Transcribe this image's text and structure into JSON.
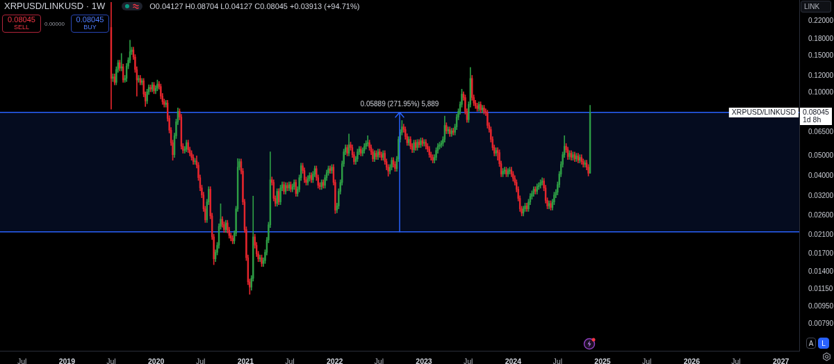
{
  "chart_data": {
    "type": "candlestick",
    "title": "XRPUSD/LINKUSD · 1W",
    "subtitle": "O0.04127 H0.08704 L0.04127 C0.08045 +0.03913 (+94.71%)",
    "ylabel": "LINK",
    "annotations": [
      "0.08045",
      "SELL",
      "0.00000",
      "0.08045",
      "BUY",
      "0.08045",
      "1d 8h",
      "A",
      "L",
      {
        "text": "XRPUSD/LINKUSD",
        "y": 0.08045
      }
    ],
    "x": [
      "2019-07-01",
      "2019-07-08",
      "2019-07-15",
      "2019-07-22",
      "2019-07-29",
      "2019-08-05",
      "2019-08-12",
      "2019-08-19",
      "2019-08-26",
      "2019-09-02",
      "2019-09-09",
      "2019-09-16",
      "2019-09-23",
      "2019-09-30",
      "2019-10-07",
      "2019-10-14",
      "2019-10-21",
      "2019-10-28",
      "2019-11-04",
      "2019-11-11",
      "2019-11-18",
      "2019-11-25",
      "2019-12-02",
      "2019-12-09",
      "2019-12-16",
      "2019-12-23",
      "2019-12-30",
      "2020-01-06",
      "2020-01-13",
      "2020-01-20",
      "2020-01-27",
      "2020-02-03",
      "2020-02-10",
      "2020-02-17",
      "2020-02-24",
      "2020-03-02",
      "2020-03-09",
      "2020-03-16",
      "2020-03-23",
      "2020-03-30",
      "2020-04-06",
      "2020-04-13",
      "2020-04-20",
      "2020-04-27",
      "2020-05-04",
      "2020-05-11",
      "2020-05-18",
      "2020-05-25",
      "2020-06-01",
      "2020-06-08",
      "2020-06-15",
      "2020-06-22",
      "2020-06-29",
      "2020-07-06",
      "2020-07-13",
      "2020-07-20",
      "2020-07-27",
      "2020-08-03",
      "2020-08-10",
      "2020-08-17",
      "2020-08-24",
      "2020-08-31",
      "2020-09-07",
      "2020-09-14",
      "2020-09-21",
      "2020-09-28",
      "2020-10-05",
      "2020-10-12",
      "2020-10-19",
      "2020-10-26",
      "2020-11-02",
      "2020-11-09",
      "2020-11-16",
      "2020-11-23",
      "2020-11-30",
      "2020-12-07",
      "2020-12-14",
      "2020-12-21",
      "2020-12-28",
      "2021-01-04",
      "2021-01-11",
      "2021-01-18",
      "2021-01-25",
      "2021-02-01",
      "2021-02-08",
      "2021-02-15",
      "2021-02-22",
      "2021-03-01",
      "2021-03-08",
      "2021-03-15",
      "2021-03-22",
      "2021-03-29",
      "2021-04-05",
      "2021-04-12",
      "2021-04-19",
      "2021-04-26",
      "2021-05-03",
      "2021-05-10",
      "2021-05-17",
      "2021-05-24",
      "2021-05-31",
      "2021-06-07",
      "2021-06-14",
      "2021-06-21",
      "2021-06-28",
      "2021-07-05",
      "2021-07-12",
      "2021-07-19",
      "2021-07-26",
      "2021-08-02",
      "2021-08-09",
      "2021-08-16",
      "2021-08-23",
      "2021-08-30",
      "2021-09-06",
      "2021-09-13",
      "2021-09-20",
      "2021-09-27",
      "2021-10-04",
      "2021-10-11",
      "2021-10-18",
      "2021-10-25",
      "2021-11-01",
      "2021-11-08",
      "2021-11-15",
      "2021-11-22",
      "2021-11-29",
      "2021-12-06",
      "2021-12-13",
      "2021-12-20",
      "2021-12-27",
      "2022-01-03",
      "2022-01-10",
      "2022-01-17",
      "2022-01-24",
      "2022-01-31",
      "2022-02-07",
      "2022-02-14",
      "2022-02-21",
      "2022-02-28",
      "2022-03-07",
      "2022-03-14",
      "2022-03-21",
      "2022-03-28",
      "2022-04-04",
      "2022-04-11",
      "2022-04-18",
      "2022-04-25",
      "2022-05-02",
      "2022-05-09",
      "2022-05-16",
      "2022-05-23",
      "2022-05-30",
      "2022-06-06",
      "2022-06-13",
      "2022-06-20",
      "2022-06-27",
      "2022-07-04",
      "2022-07-11",
      "2022-07-18",
      "2022-07-25",
      "2022-08-01",
      "2022-08-08",
      "2022-08-15",
      "2022-08-22",
      "2022-08-29",
      "2022-09-05",
      "2022-09-12",
      "2022-09-19",
      "2022-09-26",
      "2022-10-03",
      "2022-10-10",
      "2022-10-17",
      "2022-10-24",
      "2022-10-31",
      "2022-11-07",
      "2022-11-14",
      "2022-11-21",
      "2022-11-28",
      "2022-12-05",
      "2022-12-12",
      "2022-12-19",
      "2022-12-26",
      "2023-01-02",
      "2023-01-09",
      "2023-01-16",
      "2023-01-23",
      "2023-01-30",
      "2023-02-06",
      "2023-02-13",
      "2023-02-20",
      "2023-02-27",
      "2023-03-06",
      "2023-03-13",
      "2023-03-20",
      "2023-03-27",
      "2023-04-03",
      "2023-04-10",
      "2023-04-17",
      "2023-04-24",
      "2023-05-01",
      "2023-05-08",
      "2023-05-15",
      "2023-05-22",
      "2023-05-29",
      "2023-06-05",
      "2023-06-12",
      "2023-06-19",
      "2023-06-26",
      "2023-07-03",
      "2023-07-10",
      "2023-07-17",
      "2023-07-24",
      "2023-07-31",
      "2023-08-07",
      "2023-08-14",
      "2023-08-21",
      "2023-08-28",
      "2023-09-04",
      "2023-09-11",
      "2023-09-18",
      "2023-09-25",
      "2023-10-02",
      "2023-10-09",
      "2023-10-16",
      "2023-10-23",
      "2023-10-30",
      "2023-11-06",
      "2023-11-13",
      "2023-11-20",
      "2023-11-27",
      "2023-12-04",
      "2023-12-11",
      "2023-12-18",
      "2023-12-25",
      "2024-01-01",
      "2024-01-08",
      "2024-01-15",
      "2024-01-22",
      "2024-01-29",
      "2024-02-05",
      "2024-02-12",
      "2024-02-19",
      "2024-02-26",
      "2024-03-04",
      "2024-03-11",
      "2024-03-18",
      "2024-03-25",
      "2024-04-01",
      "2024-04-08",
      "2024-04-15",
      "2024-04-22",
      "2024-04-29",
      "2024-05-06",
      "2024-05-13",
      "2024-05-20",
      "2024-05-27",
      "2024-06-03",
      "2024-06-10",
      "2024-06-17",
      "2024-06-24",
      "2024-07-01",
      "2024-07-08",
      "2024-07-15",
      "2024-07-22",
      "2024-07-29",
      "2024-08-05",
      "2024-08-12",
      "2024-08-19",
      "2024-08-26",
      "2024-09-02",
      "2024-09-09",
      "2024-09-16",
      "2024-09-23",
      "2024-09-30",
      "2024-10-07",
      "2024-10-14",
      "2024-10-21",
      "2024-10-28",
      "2024-11-04",
      "2024-11-11"
    ],
    "ohlc": [
      [
        0.205,
        0.27,
        0.0834,
        0.117
      ],
      [
        0.117,
        0.123,
        0.113,
        0.119
      ],
      [
        0.119,
        0.123,
        0.109,
        0.112
      ],
      [
        0.112,
        0.133,
        0.109,
        0.129
      ],
      [
        0.129,
        0.143,
        0.125,
        0.139
      ],
      [
        0.139,
        0.143,
        0.127,
        0.131
      ],
      [
        0.131,
        0.154,
        0.127,
        0.133
      ],
      [
        0.133,
        0.137,
        0.112,
        0.115
      ],
      [
        0.115,
        0.121,
        0.112,
        0.117
      ],
      [
        0.117,
        0.138,
        0.113,
        0.134
      ],
      [
        0.134,
        0.147,
        0.13,
        0.143
      ],
      [
        0.143,
        0.178,
        0.139,
        0.157
      ],
      [
        0.157,
        0.165,
        0.152,
        0.16
      ],
      [
        0.16,
        0.165,
        0.144,
        0.148
      ],
      [
        0.148,
        0.152,
        0.125,
        0.129
      ],
      [
        0.129,
        0.133,
        0.0963,
        0.115
      ],
      [
        0.115,
        0.121,
        0.112,
        0.117
      ],
      [
        0.117,
        0.121,
        0.109,
        0.112
      ],
      [
        0.112,
        0.117,
        0.109,
        0.114
      ],
      [
        0.114,
        0.117,
        0.0955,
        0.0985
      ],
      [
        0.0985,
        0.101,
        0.0859,
        0.0913
      ],
      [
        0.0913,
        0.104,
        0.0886,
        0.101
      ],
      [
        0.101,
        0.109,
        0.098,
        0.106
      ],
      [
        0.106,
        0.109,
        0.101,
        0.104
      ],
      [
        0.104,
        0.112,
        0.101,
        0.109
      ],
      [
        0.109,
        0.112,
        0.0989,
        0.102
      ],
      [
        0.102,
        0.108,
        0.0989,
        0.105
      ],
      [
        0.105,
        0.115,
        0.102,
        0.11
      ],
      [
        0.11,
        0.113,
        0.104,
        0.107
      ],
      [
        0.107,
        0.11,
        0.0934,
        0.0963
      ],
      [
        0.0963,
        0.0992,
        0.0879,
        0.0906
      ],
      [
        0.0906,
        0.0933,
        0.0853,
        0.0879
      ],
      [
        0.0879,
        0.092,
        0.0853,
        0.0893
      ],
      [
        0.0893,
        0.092,
        0.0731,
        0.0754
      ],
      [
        0.0754,
        0.0777,
        0.0642,
        0.0662
      ],
      [
        0.0662,
        0.0682,
        0.056,
        0.0577
      ],
      [
        0.0577,
        0.0594,
        0.0476,
        0.0506
      ],
      [
        0.0506,
        0.0642,
        0.0491,
        0.0623
      ],
      [
        0.0623,
        0.0748,
        0.0604,
        0.0726
      ],
      [
        0.0726,
        0.0846,
        0.0704,
        0.0814
      ],
      [
        0.0814,
        0.0838,
        0.0742,
        0.0765
      ],
      [
        0.0765,
        0.0788,
        0.0538,
        0.0555
      ],
      [
        0.0555,
        0.0572,
        0.0514,
        0.053
      ],
      [
        0.053,
        0.0554,
        0.0514,
        0.0538
      ],
      [
        0.0538,
        0.0594,
        0.0522,
        0.0577
      ],
      [
        0.0577,
        0.0594,
        0.0518,
        0.0534
      ],
      [
        0.0534,
        0.055,
        0.0499,
        0.0514
      ],
      [
        0.0514,
        0.0529,
        0.0476,
        0.0491
      ],
      [
        0.0491,
        0.0506,
        0.0455,
        0.0469
      ],
      [
        0.0469,
        0.0486,
        0.0455,
        0.0472
      ],
      [
        0.0472,
        0.05,
        0.0437,
        0.0451
      ],
      [
        0.0451,
        0.0465,
        0.0381,
        0.0393
      ],
      [
        0.0393,
        0.0405,
        0.034,
        0.0351
      ],
      [
        0.0351,
        0.0362,
        0.0315,
        0.0325
      ],
      [
        0.0325,
        0.0335,
        0.0271,
        0.0279
      ],
      [
        0.0279,
        0.0287,
        0.024,
        0.0247
      ],
      [
        0.0247,
        0.031,
        0.024,
        0.0301
      ],
      [
        0.0301,
        0.0356,
        0.0292,
        0.0346
      ],
      [
        0.0346,
        0.0356,
        0.025,
        0.0258
      ],
      [
        0.0258,
        0.0266,
        0.0199,
        0.0205
      ],
      [
        0.0205,
        0.0211,
        0.0151,
        0.0161
      ],
      [
        0.0161,
        0.0178,
        0.0156,
        0.0173
      ],
      [
        0.0173,
        0.0193,
        0.0168,
        0.0187
      ],
      [
        0.0187,
        0.0237,
        0.0181,
        0.023
      ],
      [
        0.023,
        0.0295,
        0.0223,
        0.0249
      ],
      [
        0.0249,
        0.0256,
        0.0228,
        0.0235
      ],
      [
        0.0235,
        0.0242,
        0.0215,
        0.0222
      ],
      [
        0.0222,
        0.0246,
        0.0215,
        0.0239
      ],
      [
        0.0239,
        0.0246,
        0.0214,
        0.0221
      ],
      [
        0.0221,
        0.0228,
        0.0202,
        0.0208
      ],
      [
        0.0208,
        0.0214,
        0.0196,
        0.0202
      ],
      [
        0.0202,
        0.0208,
        0.019,
        0.0196
      ],
      [
        0.0196,
        0.0219,
        0.019,
        0.0213
      ],
      [
        0.0213,
        0.0287,
        0.0207,
        0.0279
      ],
      [
        0.0279,
        0.0485,
        0.0271,
        0.0441
      ],
      [
        0.0441,
        0.0483,
        0.0428,
        0.0469
      ],
      [
        0.0469,
        0.0483,
        0.0409,
        0.0422
      ],
      [
        0.0422,
        0.0435,
        0.0292,
        0.0301
      ],
      [
        0.0301,
        0.031,
        0.0215,
        0.0222
      ],
      [
        0.0222,
        0.0229,
        0.0158,
        0.0163
      ],
      [
        0.0163,
        0.0168,
        0.0121,
        0.0125
      ],
      [
        0.0125,
        0.0129,
        0.0109,
        0.0118
      ],
      [
        0.0118,
        0.0134,
        0.0114,
        0.013
      ],
      [
        0.013,
        0.0321,
        0.0126,
        0.0205
      ],
      [
        0.0205,
        0.0211,
        0.0181,
        0.0187
      ],
      [
        0.0187,
        0.0193,
        0.0165,
        0.017
      ],
      [
        0.017,
        0.0175,
        0.0156,
        0.0161
      ],
      [
        0.0161,
        0.0168,
        0.0156,
        0.0163
      ],
      [
        0.0163,
        0.0168,
        0.0148,
        0.0153
      ],
      [
        0.0153,
        0.0163,
        0.0148,
        0.0158
      ],
      [
        0.0158,
        0.0178,
        0.0153,
        0.0173
      ],
      [
        0.0173,
        0.0204,
        0.0168,
        0.0198
      ],
      [
        0.0198,
        0.0241,
        0.0192,
        0.0234
      ],
      [
        0.0234,
        0.0522,
        0.0227,
        0.0384
      ],
      [
        0.0384,
        0.0396,
        0.0362,
        0.0373
      ],
      [
        0.0373,
        0.0384,
        0.0304,
        0.0313
      ],
      [
        0.0313,
        0.0322,
        0.0287,
        0.0296
      ],
      [
        0.0296,
        0.0348,
        0.0287,
        0.0338
      ],
      [
        0.0338,
        0.0348,
        0.0292,
        0.0301
      ],
      [
        0.0301,
        0.0362,
        0.0292,
        0.0351
      ],
      [
        0.0351,
        0.0375,
        0.034,
        0.0364
      ],
      [
        0.0364,
        0.0375,
        0.0328,
        0.0338
      ],
      [
        0.0338,
        0.0372,
        0.0328,
        0.0361
      ],
      [
        0.0361,
        0.0372,
        0.034,
        0.0351
      ],
      [
        0.0351,
        0.0375,
        0.034,
        0.0364
      ],
      [
        0.0364,
        0.0375,
        0.0336,
        0.0346
      ],
      [
        0.0346,
        0.0367,
        0.0336,
        0.0356
      ],
      [
        0.0356,
        0.0384,
        0.0345,
        0.0373
      ],
      [
        0.0373,
        0.0384,
        0.032,
        0.033
      ],
      [
        0.033,
        0.0356,
        0.032,
        0.0346
      ],
      [
        0.0346,
        0.0405,
        0.0336,
        0.0393
      ],
      [
        0.0393,
        0.0461,
        0.0381,
        0.0448
      ],
      [
        0.0448,
        0.0461,
        0.0412,
        0.0425
      ],
      [
        0.0425,
        0.0438,
        0.0372,
        0.0384
      ],
      [
        0.0384,
        0.0396,
        0.0362,
        0.0373
      ],
      [
        0.0373,
        0.0402,
        0.0362,
        0.039
      ],
      [
        0.039,
        0.0415,
        0.0378,
        0.0403
      ],
      [
        0.0403,
        0.0415,
        0.0372,
        0.0384
      ],
      [
        0.0384,
        0.0421,
        0.0372,
        0.0409
      ],
      [
        0.0409,
        0.0447,
        0.0397,
        0.0434
      ],
      [
        0.0434,
        0.0447,
        0.0381,
        0.0393
      ],
      [
        0.0393,
        0.0405,
        0.035,
        0.0361
      ],
      [
        0.0361,
        0.0372,
        0.0345,
        0.0356
      ],
      [
        0.0356,
        0.0384,
        0.0345,
        0.0373
      ],
      [
        0.0373,
        0.0384,
        0.035,
        0.0361
      ],
      [
        0.0361,
        0.0405,
        0.035,
        0.0393
      ],
      [
        0.0393,
        0.0427,
        0.0381,
        0.0415
      ],
      [
        0.0415,
        0.0447,
        0.0403,
        0.0434
      ],
      [
        0.0434,
        0.0447,
        0.0412,
        0.0425
      ],
      [
        0.0425,
        0.0454,
        0.0412,
        0.0441
      ],
      [
        0.0441,
        0.0454,
        0.0362,
        0.0373
      ],
      [
        0.0373,
        0.0384,
        0.0265,
        0.0275
      ],
      [
        0.0275,
        0.0297,
        0.0267,
        0.0288
      ],
      [
        0.0288,
        0.0348,
        0.0279,
        0.0338
      ],
      [
        0.0338,
        0.0384,
        0.0328,
        0.0373
      ],
      [
        0.0373,
        0.0472,
        0.0362,
        0.0458
      ],
      [
        0.0458,
        0.0538,
        0.0444,
        0.0522
      ],
      [
        0.0522,
        0.0563,
        0.0506,
        0.0547
      ],
      [
        0.0547,
        0.0563,
        0.0499,
        0.0514
      ],
      [
        0.0514,
        0.0636,
        0.0499,
        0.0564
      ],
      [
        0.0564,
        0.0581,
        0.0531,
        0.0547
      ],
      [
        0.0547,
        0.0563,
        0.0491,
        0.0506
      ],
      [
        0.0506,
        0.0521,
        0.0455,
        0.0469
      ],
      [
        0.0469,
        0.0497,
        0.0455,
        0.0483
      ],
      [
        0.0483,
        0.0538,
        0.0469,
        0.0522
      ],
      [
        0.0522,
        0.0554,
        0.0506,
        0.0538
      ],
      [
        0.0538,
        0.0554,
        0.0499,
        0.0514
      ],
      [
        0.0514,
        0.0546,
        0.0499,
        0.053
      ],
      [
        0.053,
        0.0572,
        0.0514,
        0.0555
      ],
      [
        0.0555,
        0.059,
        0.0538,
        0.0573
      ],
      [
        0.0573,
        0.0623,
        0.0556,
        0.0577
      ],
      [
        0.0577,
        0.0594,
        0.0531,
        0.0547
      ],
      [
        0.0547,
        0.0563,
        0.0506,
        0.0522
      ],
      [
        0.0522,
        0.0538,
        0.0469,
        0.0483
      ],
      [
        0.0483,
        0.0529,
        0.0469,
        0.0514
      ],
      [
        0.0514,
        0.0529,
        0.048,
        0.0495
      ],
      [
        0.0495,
        0.0538,
        0.048,
        0.0522
      ],
      [
        0.0522,
        0.0538,
        0.0491,
        0.0506
      ],
      [
        0.0506,
        0.0521,
        0.0476,
        0.0491
      ],
      [
        0.0491,
        0.0529,
        0.0476,
        0.0514
      ],
      [
        0.0514,
        0.0529,
        0.0455,
        0.0469
      ],
      [
        0.0469,
        0.0483,
        0.0428,
        0.0441
      ],
      [
        0.0441,
        0.0454,
        0.0399,
        0.0422
      ],
      [
        0.0422,
        0.0454,
        0.0409,
        0.0441
      ],
      [
        0.0441,
        0.049,
        0.0428,
        0.0476
      ],
      [
        0.0476,
        0.049,
        0.0441,
        0.0455
      ],
      [
        0.0455,
        0.0469,
        0.0421,
        0.0434
      ],
      [
        0.0434,
        0.0497,
        0.0421,
        0.0483
      ],
      [
        0.0483,
        0.0617,
        0.0469,
        0.0599
      ],
      [
        0.0599,
        0.0666,
        0.0581,
        0.0647
      ],
      [
        0.0647,
        0.0737,
        0.0628,
        0.0687
      ],
      [
        0.0687,
        0.0708,
        0.0647,
        0.0667
      ],
      [
        0.0667,
        0.0687,
        0.0599,
        0.0618
      ],
      [
        0.0618,
        0.0637,
        0.056,
        0.0577
      ],
      [
        0.0577,
        0.0617,
        0.056,
        0.0599
      ],
      [
        0.0599,
        0.0617,
        0.0538,
        0.0555
      ],
      [
        0.0555,
        0.0572,
        0.0518,
        0.0534
      ],
      [
        0.0534,
        0.0594,
        0.0518,
        0.0577
      ],
      [
        0.0577,
        0.0594,
        0.0531,
        0.0547
      ],
      [
        0.0547,
        0.0598,
        0.0531,
        0.0581
      ],
      [
        0.0581,
        0.0598,
        0.0547,
        0.0564
      ],
      [
        0.0564,
        0.0608,
        0.0547,
        0.059
      ],
      [
        0.059,
        0.0608,
        0.0556,
        0.0573
      ],
      [
        0.0573,
        0.0598,
        0.0556,
        0.0581
      ],
      [
        0.0581,
        0.0598,
        0.0538,
        0.0555
      ],
      [
        0.0555,
        0.0572,
        0.0522,
        0.0538
      ],
      [
        0.0538,
        0.0554,
        0.0491,
        0.0506
      ],
      [
        0.0506,
        0.0521,
        0.0476,
        0.0491
      ],
      [
        0.0491,
        0.0506,
        0.0462,
        0.0476
      ],
      [
        0.0476,
        0.0506,
        0.0462,
        0.0491
      ],
      [
        0.0491,
        0.0546,
        0.0476,
        0.053
      ],
      [
        0.053,
        0.0572,
        0.0514,
        0.0555
      ],
      [
        0.0555,
        0.0581,
        0.0538,
        0.0564
      ],
      [
        0.0564,
        0.059,
        0.0547,
        0.0573
      ],
      [
        0.0573,
        0.0617,
        0.0556,
        0.0599
      ],
      [
        0.0599,
        0.0774,
        0.0581,
        0.0698
      ],
      [
        0.0698,
        0.0719,
        0.0637,
        0.0657
      ],
      [
        0.0657,
        0.0687,
        0.0637,
        0.0667
      ],
      [
        0.0667,
        0.0687,
        0.0618,
        0.0637
      ],
      [
        0.0637,
        0.0677,
        0.0618,
        0.0657
      ],
      [
        0.0657,
        0.0677,
        0.0628,
        0.0647
      ],
      [
        0.0647,
        0.0708,
        0.0628,
        0.0687
      ],
      [
        0.0687,
        0.0788,
        0.0666,
        0.0765
      ],
      [
        0.0765,
        0.0838,
        0.0742,
        0.0814
      ],
      [
        0.0814,
        0.0905,
        0.079,
        0.0879
      ],
      [
        0.0879,
        0.104,
        0.0853,
        0.0985
      ],
      [
        0.0985,
        0.101,
        0.092,
        0.0948
      ],
      [
        0.0948,
        0.0976,
        0.079,
        0.0814
      ],
      [
        0.0814,
        0.0838,
        0.0721,
        0.0743
      ],
      [
        0.0743,
        0.0905,
        0.0721,
        0.0879
      ],
      [
        0.0879,
        0.132,
        0.0853,
        0.117
      ],
      [
        0.117,
        0.121,
        0.092,
        0.0948
      ],
      [
        0.0948,
        0.0976,
        0.0866,
        0.0893
      ],
      [
        0.0893,
        0.092,
        0.084,
        0.0866
      ],
      [
        0.0866,
        0.0892,
        0.0815,
        0.084
      ],
      [
        0.084,
        0.0905,
        0.0815,
        0.0879
      ],
      [
        0.0879,
        0.0905,
        0.0802,
        0.0827
      ],
      [
        0.0827,
        0.0871,
        0.0802,
        0.0846
      ],
      [
        0.0846,
        0.0871,
        0.079,
        0.0814
      ],
      [
        0.0814,
        0.0838,
        0.0778,
        0.0802
      ],
      [
        0.0802,
        0.0826,
        0.0677,
        0.0698
      ],
      [
        0.0698,
        0.0719,
        0.0647,
        0.0667
      ],
      [
        0.0667,
        0.0687,
        0.0581,
        0.0599
      ],
      [
        0.0599,
        0.0617,
        0.0531,
        0.0547
      ],
      [
        0.0547,
        0.0563,
        0.0499,
        0.0514
      ],
      [
        0.0514,
        0.0546,
        0.0499,
        0.053
      ],
      [
        0.053,
        0.0546,
        0.0476,
        0.0518
      ],
      [
        0.0518,
        0.0534,
        0.0444,
        0.0458
      ],
      [
        0.0458,
        0.0472,
        0.0397,
        0.0409
      ],
      [
        0.0409,
        0.0435,
        0.0397,
        0.0422
      ],
      [
        0.0422,
        0.0441,
        0.0409,
        0.0428
      ],
      [
        0.0428,
        0.0441,
        0.0397,
        0.0409
      ],
      [
        0.0409,
        0.0435,
        0.0397,
        0.0422
      ],
      [
        0.0422,
        0.0441,
        0.0409,
        0.0428
      ],
      [
        0.0428,
        0.0441,
        0.0397,
        0.0409
      ],
      [
        0.0409,
        0.0421,
        0.0378,
        0.039
      ],
      [
        0.039,
        0.0402,
        0.0362,
        0.0373
      ],
      [
        0.0373,
        0.0384,
        0.0336,
        0.0346
      ],
      [
        0.0346,
        0.0356,
        0.0304,
        0.0313
      ],
      [
        0.0313,
        0.0322,
        0.0271,
        0.0279
      ],
      [
        0.0279,
        0.0287,
        0.0258,
        0.0266
      ],
      [
        0.0266,
        0.0287,
        0.0258,
        0.0279
      ],
      [
        0.0279,
        0.0297,
        0.0271,
        0.0288
      ],
      [
        0.0288,
        0.0297,
        0.0271,
        0.0279
      ],
      [
        0.0279,
        0.031,
        0.0271,
        0.0301
      ],
      [
        0.0301,
        0.033,
        0.0292,
        0.032
      ],
      [
        0.032,
        0.034,
        0.031,
        0.033
      ],
      [
        0.033,
        0.0356,
        0.032,
        0.0346
      ],
      [
        0.0346,
        0.0356,
        0.0328,
        0.0338
      ],
      [
        0.0338,
        0.0367,
        0.0328,
        0.0356
      ],
      [
        0.0356,
        0.0372,
        0.0345,
        0.0361
      ],
      [
        0.0361,
        0.0384,
        0.035,
        0.0373
      ],
      [
        0.0373,
        0.0393,
        0.0362,
        0.0379
      ],
      [
        0.0379,
        0.039,
        0.034,
        0.0351
      ],
      [
        0.0351,
        0.0362,
        0.0297,
        0.0306
      ],
      [
        0.0306,
        0.0315,
        0.0279,
        0.0288
      ],
      [
        0.0288,
        0.0305,
        0.0279,
        0.0296
      ],
      [
        0.0296,
        0.0305,
        0.0275,
        0.0283
      ],
      [
        0.0283,
        0.031,
        0.0275,
        0.0301
      ],
      [
        0.0301,
        0.0335,
        0.0292,
        0.0325
      ],
      [
        0.0325,
        0.0345,
        0.0315,
        0.0335
      ],
      [
        0.0335,
        0.0375,
        0.0325,
        0.0364
      ],
      [
        0.0364,
        0.0421,
        0.0353,
        0.0409
      ],
      [
        0.0409,
        0.0469,
        0.0397,
        0.0455
      ],
      [
        0.0455,
        0.0521,
        0.0441,
        0.0506
      ],
      [
        0.0506,
        0.0623,
        0.0491,
        0.0555
      ],
      [
        0.0555,
        0.0572,
        0.0518,
        0.0534
      ],
      [
        0.0534,
        0.055,
        0.048,
        0.0495
      ],
      [
        0.0495,
        0.0529,
        0.048,
        0.0514
      ],
      [
        0.0514,
        0.0529,
        0.0476,
        0.0491
      ],
      [
        0.0491,
        0.0521,
        0.0476,
        0.0506
      ],
      [
        0.0506,
        0.0521,
        0.0469,
        0.0483
      ],
      [
        0.0483,
        0.0514,
        0.0469,
        0.0499
      ],
      [
        0.0499,
        0.0514,
        0.0462,
        0.0476
      ],
      [
        0.0476,
        0.0506,
        0.0462,
        0.0491
      ],
      [
        0.0491,
        0.0506,
        0.0455,
        0.0469
      ],
      [
        0.0469,
        0.0483,
        0.0441,
        0.0455
      ],
      [
        0.0455,
        0.0476,
        0.0441,
        0.0462
      ],
      [
        0.0462,
        0.0476,
        0.0428,
        0.0441
      ],
      [
        0.0441,
        0.0454,
        0.04,
        0.04127
      ],
      [
        0.04127,
        0.08704,
        0.04127,
        0.08045
      ]
    ],
    "colors": [
      "#e5262d",
      "#2e9e45",
      "#e5262d",
      "#2e9e45",
      "#2e9e45",
      "#e5262d",
      "#2e9e45",
      "#e5262d",
      "#2e9e45",
      "#2e9e45",
      "#2e9e45",
      "#2e9e45",
      "#2e9e45",
      "#e5262d",
      "#e5262d",
      "#e5262d",
      "#2e9e45",
      "#e5262d",
      "#2e9e45",
      "#e5262d",
      "#e5262d",
      "#2e9e45",
      "#2e9e45",
      "#e5262d",
      "#2e9e45",
      "#e5262d",
      "#2e9e45",
      "#2e9e45",
      "#e5262d",
      "#e5262d",
      "#e5262d",
      "#e5262d",
      "#2e9e45",
      "#e5262d",
      "#e5262d",
      "#e5262d",
      "#e5262d",
      "#2e9e45",
      "#2e9e45",
      "#2e9e45",
      "#e5262d",
      "#e5262d",
      "#e5262d",
      "#2e9e45",
      "#2e9e45",
      "#e5262d",
      "#e5262d",
      "#e5262d",
      "#e5262d",
      "#2e9e45",
      "#e5262d",
      "#e5262d",
      "#e5262d",
      "#e5262d",
      "#e5262d",
      "#e5262d",
      "#2e9e45",
      "#2e9e45",
      "#e5262d",
      "#e5262d",
      "#e5262d",
      "#2e9e45",
      "#2e9e45",
      "#2e9e45",
      "#2e9e45",
      "#e5262d",
      "#e5262d",
      "#2e9e45",
      "#e5262d",
      "#e5262d",
      "#e5262d",
      "#e5262d",
      "#2e9e45",
      "#2e9e45",
      "#2e9e45",
      "#2e9e45",
      "#e5262d",
      "#e5262d",
      "#e5262d",
      "#e5262d",
      "#e5262d",
      "#e5262d",
      "#2e9e45",
      "#2e9e45",
      "#e5262d",
      "#e5262d",
      "#e5262d",
      "#2e9e45",
      "#e5262d",
      "#2e9e45",
      "#2e9e45",
      "#2e9e45",
      "#2e9e45",
      "#2e9e45",
      "#e5262d",
      "#e5262d",
      "#e5262d",
      "#2e9e45",
      "#e5262d",
      "#2e9e45",
      "#2e9e45",
      "#e5262d",
      "#2e9e45",
      "#e5262d",
      "#2e9e45",
      "#e5262d",
      "#2e9e45",
      "#2e9e45",
      "#e5262d",
      "#2e9e45",
      "#2e9e45",
      "#2e9e45",
      "#e5262d",
      "#e5262d",
      "#e5262d",
      "#2e9e45",
      "#2e9e45",
      "#e5262d",
      "#2e9e45",
      "#2e9e45",
      "#e5262d",
      "#e5262d",
      "#e5262d",
      "#2e9e45",
      "#e5262d",
      "#2e9e45",
      "#2e9e45",
      "#2e9e45",
      "#e5262d",
      "#2e9e45",
      "#e5262d",
      "#e5262d",
      "#2e9e45",
      "#2e9e45",
      "#2e9e45",
      "#2e9e45",
      "#2e9e45",
      "#2e9e45",
      "#e5262d",
      "#2e9e45",
      "#e5262d",
      "#e5262d",
      "#e5262d",
      "#2e9e45",
      "#2e9e45",
      "#2e9e45",
      "#e5262d",
      "#2e9e45",
      "#2e9e45",
      "#2e9e45",
      "#2e9e45",
      "#e5262d",
      "#e5262d",
      "#e5262d",
      "#2e9e45",
      "#e5262d",
      "#2e9e45",
      "#e5262d",
      "#e5262d",
      "#2e9e45",
      "#e5262d",
      "#e5262d",
      "#e5262d",
      "#2e9e45",
      "#2e9e45",
      "#e5262d",
      "#e5262d",
      "#2e9e45",
      "#2e9e45",
      "#2e9e45",
      "#2e9e45",
      "#e5262d",
      "#e5262d",
      "#e5262d",
      "#2e9e45",
      "#e5262d",
      "#e5262d",
      "#2e9e45",
      "#e5262d",
      "#2e9e45",
      "#e5262d",
      "#2e9e45",
      "#e5262d",
      "#2e9e45",
      "#e5262d",
      "#e5262d",
      "#e5262d",
      "#e5262d",
      "#e5262d",
      "#2e9e45",
      "#2e9e45",
      "#2e9e45",
      "#2e9e45",
      "#2e9e45",
      "#2e9e45",
      "#2e9e45",
      "#e5262d",
      "#2e9e45",
      "#e5262d",
      "#2e9e45",
      "#e5262d",
      "#2e9e45",
      "#2e9e45",
      "#2e9e45",
      "#2e9e45",
      "#2e9e45",
      "#e5262d",
      "#e5262d",
      "#e5262d",
      "#2e9e45",
      "#2e9e45",
      "#e5262d",
      "#e5262d",
      "#e5262d",
      "#e5262d",
      "#2e9e45",
      "#e5262d",
      "#2e9e45",
      "#e5262d",
      "#e5262d",
      "#e5262d",
      "#e5262d",
      "#e5262d",
      "#e5262d",
      "#e5262d",
      "#2e9e45",
      "#e5262d",
      "#e5262d",
      "#e5262d",
      "#2e9e45",
      "#2e9e45",
      "#e5262d",
      "#2e9e45",
      "#2e9e45",
      "#e5262d",
      "#e5262d",
      "#e5262d",
      "#e5262d",
      "#e5262d",
      "#e5262d",
      "#e5262d",
      "#2e9e45",
      "#2e9e45",
      "#e5262d",
      "#2e9e45",
      "#2e9e45",
      "#2e9e45",
      "#2e9e45",
      "#e5262d",
      "#2e9e45",
      "#2e9e45",
      "#2e9e45",
      "#2e9e45",
      "#e5262d",
      "#e5262d",
      "#e5262d",
      "#2e9e45",
      "#e5262d",
      "#2e9e45",
      "#2e9e45",
      "#2e9e45",
      "#2e9e45",
      "#2e9e45",
      "#2e9e45",
      "#2e9e45",
      "#2e9e45",
      "#e5262d",
      "#e5262d",
      "#2e9e45",
      "#e5262d",
      "#2e9e45",
      "#e5262d",
      "#2e9e45",
      "#e5262d",
      "#2e9e45",
      "#e5262d",
      "#e5262d",
      "#2e9e45",
      "#e5262d",
      "#e5262d",
      "#2e9e45"
    ],
    "xlim": [
      "2018-04-02",
      "2027-03-17"
    ],
    "ylim": [
      0.00586,
      0.277
    ],
    "xticks": [
      {
        "value": "2018-07-01",
        "label": "Jul"
      },
      {
        "value": "2019-01-01",
        "label": "2019"
      },
      {
        "value": "2019-07-01",
        "label": "Jul"
      },
      {
        "value": "2020-01-01",
        "label": "2020"
      },
      {
        "value": "2020-07-01",
        "label": "Jul"
      },
      {
        "value": "2021-01-01",
        "label": "2021"
      },
      {
        "value": "2021-07-01",
        "label": "Jul"
      },
      {
        "value": "2022-01-01",
        "label": "2022"
      },
      {
        "value": "2022-07-01",
        "label": "Jul"
      },
      {
        "value": "2023-01-01",
        "label": "2023"
      },
      {
        "value": "2023-07-01",
        "label": "Jul"
      },
      {
        "value": "2024-01-01",
        "label": "2024"
      },
      {
        "value": "2024-07-01",
        "label": "Jul"
      },
      {
        "value": "2025-01-01",
        "label": "2025"
      },
      {
        "value": "2025-07-01",
        "label": "Jul"
      },
      {
        "value": "2026-01-01",
        "label": "2026"
      },
      {
        "value": "2026-07-01",
        "label": "Jul"
      },
      {
        "value": "2027-01-01",
        "label": "2027"
      }
    ],
    "yticks": [
      {
        "value": 0.22,
        "label": "0.22000"
      },
      {
        "value": 0.18,
        "label": "0.18000"
      },
      {
        "value": 0.15,
        "label": "0.15000"
      },
      {
        "value": 0.12,
        "label": "0.12000"
      },
      {
        "value": 0.1,
        "label": "0.10000"
      },
      {
        "value": 0.065,
        "label": "0.06500"
      },
      {
        "value": 0.05,
        "label": "0.05000"
      },
      {
        "value": 0.04,
        "label": "0.04000"
      },
      {
        "value": 0.032,
        "label": "0.03200"
      },
      {
        "value": 0.026,
        "label": "0.02600"
      },
      {
        "value": 0.021,
        "label": "0.02100"
      },
      {
        "value": 0.017,
        "label": "0.01700"
      },
      {
        "value": 0.014,
        "label": "0.01400"
      },
      {
        "value": 0.0115,
        "label": "0.01150"
      },
      {
        "value": 0.0095,
        "label": "0.00950"
      },
      {
        "value": 0.0079,
        "label": "0.00790"
      }
    ],
    "log": true,
    "bands": [
      {
        "axis": "y",
        "from": 0.02165,
        "to": 0.08054,
        "label": "0.05889 (271.95%) 5,889",
        "color": "#2962ff"
      }
    ],
    "ref_lines": [
      {
        "axis": "y",
        "value": 0.08054,
        "color": "#2962ff"
      },
      {
        "axis": "y",
        "value": 0.02165,
        "color": "#2962ff"
      }
    ]
  }
}
